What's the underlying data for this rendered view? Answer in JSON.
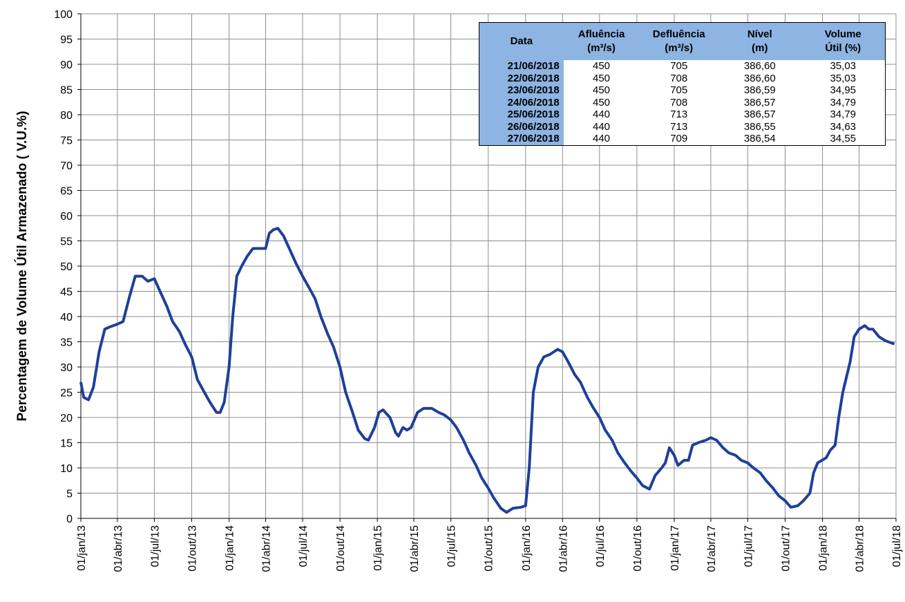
{
  "chart_data": {
    "type": "line",
    "y_label": "Percentagem de Volume Útil Armazenado ( V.U.%)",
    "color": "#1f3f99",
    "grid": true,
    "ylim": [
      0,
      100
    ],
    "yticks": [
      0,
      5,
      10,
      15,
      20,
      25,
      30,
      35,
      40,
      45,
      50,
      55,
      60,
      65,
      70,
      75,
      80,
      85,
      90,
      95,
      100
    ],
    "xlim": [
      "2013-01-01",
      "2018-07-01"
    ],
    "xticks": [
      {
        "value": "2013-01-01",
        "label": "01/jan/13"
      },
      {
        "value": "2013-04-01",
        "label": "01/abr/13"
      },
      {
        "value": "2013-07-01",
        "label": "01/jul/13"
      },
      {
        "value": "2013-10-01",
        "label": "01/out/13"
      },
      {
        "value": "2014-01-01",
        "label": "01/jan/14"
      },
      {
        "value": "2014-04-01",
        "label": "01/abr/14"
      },
      {
        "value": "2014-07-01",
        "label": "01/jul/14"
      },
      {
        "value": "2014-10-01",
        "label": "01/out/14"
      },
      {
        "value": "2015-01-01",
        "label": "01/jan/15"
      },
      {
        "value": "2015-04-01",
        "label": "01/abr/15"
      },
      {
        "value": "2015-07-01",
        "label": "01/jul/15"
      },
      {
        "value": "2015-10-01",
        "label": "01/out/15"
      },
      {
        "value": "2016-01-01",
        "label": "01/jan/16"
      },
      {
        "value": "2016-04-01",
        "label": "01/abr/16"
      },
      {
        "value": "2016-07-01",
        "label": "01/jul/16"
      },
      {
        "value": "2016-10-01",
        "label": "01/out/16"
      },
      {
        "value": "2017-01-01",
        "label": "01/jan/17"
      },
      {
        "value": "2017-04-01",
        "label": "01/abr/17"
      },
      {
        "value": "2017-07-01",
        "label": "01/jul/17"
      },
      {
        "value": "2017-10-01",
        "label": "01/out/17"
      },
      {
        "value": "2018-01-01",
        "label": "01/jan/18"
      },
      {
        "value": "2018-04-01",
        "label": "01/abr/18"
      },
      {
        "value": "2018-07-01",
        "label": "01/jul/18"
      }
    ],
    "x": [
      "2013-01-01",
      "2013-01-08",
      "2013-01-20",
      "2013-02-01",
      "2013-02-15",
      "2013-03-01",
      "2013-03-15",
      "2013-04-01",
      "2013-04-15",
      "2013-05-01",
      "2013-05-15",
      "2013-06-01",
      "2013-06-15",
      "2013-07-01",
      "2013-07-15",
      "2013-08-01",
      "2013-08-15",
      "2013-09-01",
      "2013-09-15",
      "2013-10-01",
      "2013-10-15",
      "2013-11-01",
      "2013-11-15",
      "2013-12-01",
      "2013-12-10",
      "2013-12-20",
      "2014-01-01",
      "2014-01-10",
      "2014-01-20",
      "2014-02-01",
      "2014-02-15",
      "2014-03-01",
      "2014-04-01",
      "2014-04-10",
      "2014-04-20",
      "2014-05-01",
      "2014-05-15",
      "2014-06-01",
      "2014-06-15",
      "2014-07-01",
      "2014-07-15",
      "2014-08-01",
      "2014-08-15",
      "2014-09-01",
      "2014-09-15",
      "2014-10-01",
      "2014-10-15",
      "2014-11-01",
      "2014-11-15",
      "2014-12-01",
      "2014-12-10",
      "2014-12-25",
      "2015-01-05",
      "2015-01-15",
      "2015-02-01",
      "2015-02-15",
      "2015-02-22",
      "2015-03-05",
      "2015-03-15",
      "2015-03-25",
      "2015-04-10",
      "2015-04-25",
      "2015-05-15",
      "2015-06-01",
      "2015-06-15",
      "2015-07-01",
      "2015-07-15",
      "2015-08-01",
      "2015-08-15",
      "2015-09-01",
      "2015-09-15",
      "2015-10-01",
      "2015-10-15",
      "2015-11-01",
      "2015-11-15",
      "2015-12-01",
      "2015-12-20",
      "2016-01-01",
      "2016-01-10",
      "2016-01-20",
      "2016-02-01",
      "2016-02-15",
      "2016-03-01",
      "2016-03-20",
      "2016-04-01",
      "2016-04-15",
      "2016-05-01",
      "2016-05-15",
      "2016-06-01",
      "2016-06-15",
      "2016-07-01",
      "2016-07-15",
      "2016-08-01",
      "2016-08-15",
      "2016-09-01",
      "2016-09-15",
      "2016-10-01",
      "2016-10-15",
      "2016-11-01",
      "2016-11-15",
      "2016-12-01",
      "2016-12-10",
      "2016-12-20",
      "2017-01-01",
      "2017-01-10",
      "2017-01-25",
      "2017-02-05",
      "2017-02-15",
      "2017-03-01",
      "2017-03-20",
      "2017-04-01",
      "2017-04-15",
      "2017-05-01",
      "2017-05-15",
      "2017-06-01",
      "2017-06-15",
      "2017-07-01",
      "2017-07-15",
      "2017-08-01",
      "2017-08-15",
      "2017-09-01",
      "2017-09-15",
      "2017-10-01",
      "2017-10-15",
      "2017-11-01",
      "2017-11-15",
      "2017-12-01",
      "2017-12-10",
      "2017-12-20",
      "2018-01-10",
      "2018-01-20",
      "2018-02-01",
      "2018-02-10",
      "2018-02-20",
      "2018-03-01",
      "2018-03-10",
      "2018-03-20",
      "2018-04-01",
      "2018-04-15",
      "2018-04-25",
      "2018-05-05",
      "2018-05-20",
      "2018-06-05",
      "2018-06-27"
    ],
    "values": [
      27,
      24,
      23.5,
      26,
      33,
      37.5,
      38,
      38.5,
      39,
      44,
      48,
      48,
      47,
      47.5,
      45,
      42,
      39,
      37,
      34.5,
      32,
      27.5,
      25,
      23,
      21,
      21,
      23,
      30,
      40,
      48,
      50,
      52,
      53.5,
      53.5,
      56.5,
      57.2,
      57.5,
      56,
      53,
      50.5,
      48,
      46,
      43.5,
      40,
      36.5,
      34,
      30,
      25,
      21,
      17.5,
      15.8,
      15.5,
      18,
      21,
      21.5,
      20,
      17,
      16.3,
      18,
      17.5,
      18,
      21,
      21.8,
      21.8,
      21,
      20.5,
      19.5,
      18,
      15.5,
      13,
      10.5,
      8,
      6,
      4,
      2,
      1.2,
      2,
      2.2,
      2.5,
      10,
      25,
      30,
      32,
      32.5,
      33.5,
      33,
      31,
      28.5,
      27,
      24,
      22,
      20,
      17.5,
      15.5,
      13,
      11,
      9.5,
      8,
      6.5,
      5.8,
      8.5,
      10,
      11,
      14,
      12.5,
      10.5,
      11.5,
      11.5,
      14.5,
      15,
      15.5,
      16,
      15.5,
      14,
      13,
      12.5,
      11.5,
      11,
      10,
      9,
      7.5,
      6,
      4.5,
      3.5,
      2.2,
      2.5,
      3.5,
      5,
      9,
      11,
      12,
      13.5,
      14.5,
      20,
      25,
      28,
      31,
      36,
      37.5,
      38.2,
      37.5,
      37.5,
      36,
      35.2,
      34.55
    ]
  },
  "table": {
    "header": [
      [
        "Data"
      ],
      [
        "Afluência",
        "(m³/s)"
      ],
      [
        "Defluência",
        "(m³/s)"
      ],
      [
        "Nível",
        "(m)"
      ],
      [
        "Volume",
        "Útil (%)"
      ]
    ],
    "rows": [
      [
        "21/06/2018",
        "450",
        "705",
        "386,60",
        "35,03"
      ],
      [
        "22/06/2018",
        "450",
        "708",
        "386,60",
        "35,03"
      ],
      [
        "23/06/2018",
        "450",
        "705",
        "386,59",
        "34,95"
      ],
      [
        "24/06/2018",
        "450",
        "708",
        "386,57",
        "34,79"
      ],
      [
        "25/06/2018",
        "440",
        "713",
        "386,57",
        "34,79"
      ],
      [
        "26/06/2018",
        "440",
        "713",
        "386,55",
        "34,63"
      ],
      [
        "27/06/2018",
        "440",
        "709",
        "386,54",
        "34,55"
      ]
    ]
  }
}
